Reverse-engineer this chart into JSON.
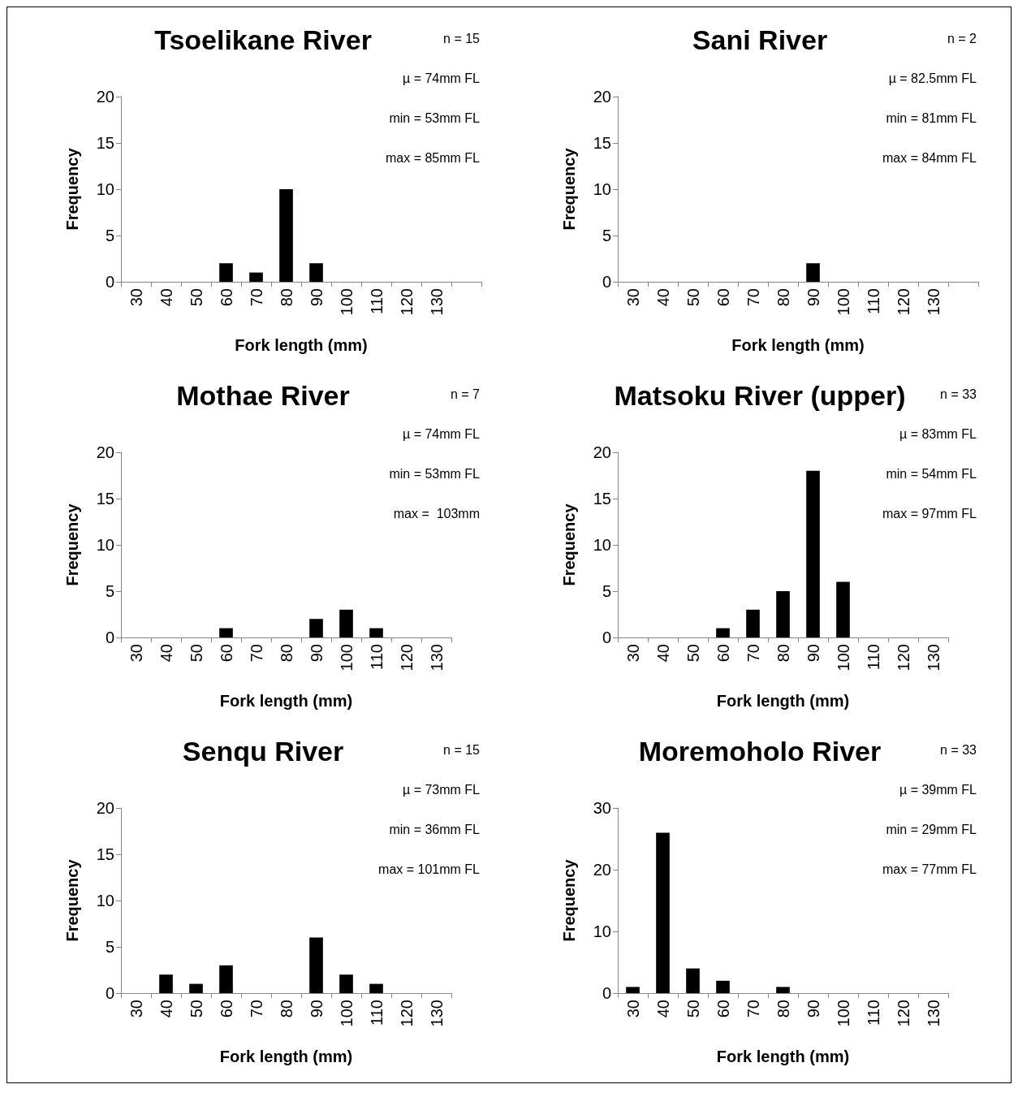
{
  "chart_data": [
    {
      "type": "bar",
      "title": "Tsoelikane River",
      "xlabel": "Fork length (mm)",
      "ylabel": "Frequency",
      "categories": [
        "30",
        "40",
        "50",
        "60",
        "70",
        "80",
        "90",
        "100",
        "110",
        "120",
        "130",
        null
      ],
      "values": [
        0,
        0,
        0,
        2,
        1,
        10,
        2,
        0,
        0,
        0,
        0,
        0
      ],
      "color": "#000000",
      "ylim": [
        0,
        20
      ],
      "yticks": [
        0,
        5,
        10,
        15,
        20
      ],
      "annotations": [
        "n = 15",
        "µ = 74mm FL",
        "min = 53mm FL",
        "max = 85mm FL"
      ]
    },
    {
      "type": "bar",
      "title": "Sani River",
      "xlabel": "Fork length (mm)",
      "ylabel": "Frequency",
      "categories": [
        "30",
        "40",
        "50",
        "60",
        "70",
        "80",
        "90",
        "100",
        "110",
        "120",
        "130",
        null
      ],
      "values": [
        0,
        0,
        0,
        0,
        0,
        0,
        2,
        0,
        0,
        0,
        0,
        0
      ],
      "color": "#000000",
      "ylim": [
        0,
        20
      ],
      "yticks": [
        0,
        5,
        10,
        15,
        20
      ],
      "annotations": [
        "n = 2",
        "µ = 82.5mm FL",
        "min = 81mm FL",
        "max = 84mm FL"
      ]
    },
    {
      "type": "bar",
      "title": "Mothae River",
      "xlabel": "Fork length (mm)",
      "ylabel": "Frequency",
      "categories": [
        "30",
        "40",
        "50",
        "60",
        "70",
        "80",
        "90",
        "100",
        "110",
        "120",
        "130"
      ],
      "values": [
        0,
        0,
        0,
        1,
        0,
        0,
        2,
        3,
        1,
        0,
        0
      ],
      "color": "#000000",
      "ylim": [
        0,
        20
      ],
      "yticks": [
        0,
        5,
        10,
        15,
        20
      ],
      "annotations": [
        "n = 7",
        "µ = 74mm FL",
        "min = 53mm FL",
        "max =  103mm"
      ]
    },
    {
      "type": "bar",
      "title": "Matsoku River (upper)",
      "xlabel": "Fork length (mm)",
      "ylabel": "Frequency",
      "categories": [
        "30",
        "40",
        "50",
        "60",
        "70",
        "80",
        "90",
        "100",
        "110",
        "120",
        "130"
      ],
      "values": [
        0,
        0,
        0,
        1,
        3,
        5,
        18,
        6,
        0,
        0,
        0
      ],
      "color": "#000000",
      "ylim": [
        0,
        20
      ],
      "yticks": [
        0,
        5,
        10,
        15,
        20
      ],
      "annotations": [
        "n = 33",
        "µ = 83mm FL",
        "min = 54mm FL",
        "max = 97mm FL"
      ]
    },
    {
      "type": "bar",
      "title": "Senqu River",
      "xlabel": "Fork length (mm)",
      "ylabel": "Frequency",
      "categories": [
        "30",
        "40",
        "50",
        "60",
        "70",
        "80",
        "90",
        "100",
        "110",
        "120",
        "130"
      ],
      "values": [
        0,
        2,
        1,
        3,
        0,
        0,
        6,
        2,
        1,
        0,
        0
      ],
      "color": "#000000",
      "ylim": [
        0,
        20
      ],
      "yticks": [
        0,
        5,
        10,
        15,
        20
      ],
      "annotations": [
        "n = 15",
        "µ = 73mm FL",
        "min = 36mm FL",
        "max = 101mm FL"
      ]
    },
    {
      "type": "bar",
      "title": "Moremoholo River",
      "xlabel": "Fork length (mm)",
      "ylabel": "Frequency",
      "categories": [
        "30",
        "40",
        "50",
        "60",
        "70",
        "80",
        "90",
        "100",
        "110",
        "120",
        "130"
      ],
      "values": [
        1,
        26,
        4,
        2,
        0,
        1,
        0,
        0,
        0,
        0,
        0
      ],
      "color": "#000000",
      "ylim": [
        0,
        30
      ],
      "yticks": [
        0,
        10,
        20,
        30
      ],
      "annotations": [
        "n = 33",
        "µ = 39mm FL",
        "min = 29mm FL",
        "max = 77mm FL"
      ]
    }
  ]
}
